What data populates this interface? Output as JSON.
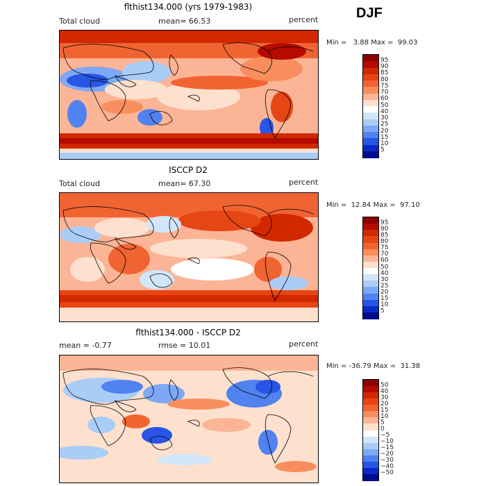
{
  "season": "DJF",
  "panels": [
    {
      "id": "model",
      "title": "flthist134.000 (yrs 1979-1983)",
      "left_label": "Total cloud",
      "center_label": "mean=  66.53",
      "right_label": "percent",
      "minmax": "Min =   3.88 Max =  99.03",
      "scale": {
        "labels": [
          "95",
          "90",
          "85",
          "80",
          "75",
          "70",
          "60",
          "50",
          "40",
          "30",
          "25",
          "20",
          "15",
          "10",
          "5"
        ],
        "colors": [
          "#8b0000",
          "#b40a00",
          "#d22800",
          "#e64614",
          "#f06432",
          "#f88e5e",
          "#fcb496",
          "#fde0cd",
          "#ffffff",
          "#d2e6fa",
          "#aacdf7",
          "#7da8f5",
          "#5082f0",
          "#2855e6",
          "#0a28c8",
          "#000a8c"
        ]
      }
    },
    {
      "id": "obs",
      "title": "ISCCP D2",
      "left_label": "Total cloud",
      "center_label": "mean=  67.30",
      "right_label": "percent",
      "minmax": "Min =  12.84 Max =  97.10",
      "scale": {
        "labels": [
          "95",
          "90",
          "85",
          "80",
          "75",
          "70",
          "60",
          "50",
          "40",
          "30",
          "25",
          "20",
          "15",
          "10",
          "5"
        ],
        "colors": [
          "#8b0000",
          "#b40a00",
          "#d22800",
          "#e64614",
          "#f06432",
          "#f88e5e",
          "#fcb496",
          "#fde0cd",
          "#ffffff",
          "#d2e6fa",
          "#aacdf7",
          "#7da8f5",
          "#5082f0",
          "#2855e6",
          "#0a28c8",
          "#000a8c"
        ]
      }
    },
    {
      "id": "diff",
      "title": "flthist134.000 - ISCCP D2",
      "left_label": "mean =  -0.77",
      "center_label": "rmse =  10.01",
      "right_label": "percent",
      "minmax": "Min = -36.79 Max =  31.38",
      "scale": {
        "labels": [
          "50",
          "40",
          "30",
          "20",
          "15",
          "10",
          "5",
          "0",
          "−5",
          "−10",
          "−15",
          "−20",
          "−30",
          "−40",
          "−50"
        ],
        "colors": [
          "#8b0000",
          "#b40a00",
          "#d22800",
          "#e64614",
          "#f06432",
          "#f88e5e",
          "#fcb496",
          "#fde0cd",
          "#ffffff",
          "#d2e6fa",
          "#aacdf7",
          "#7da8f5",
          "#5082f0",
          "#2855e6",
          "#0a28c8",
          "#000a8c"
        ]
      }
    }
  ]
}
